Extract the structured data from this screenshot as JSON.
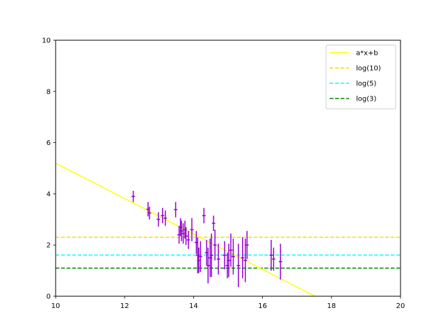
{
  "chart_data": {
    "type": "scatter",
    "xlim": [
      10,
      20
    ],
    "ylim": [
      0,
      10
    ],
    "x_ticks": [
      10,
      12,
      14,
      16,
      18,
      20
    ],
    "y_ticks": [
      0,
      2,
      4,
      6,
      8,
      10
    ],
    "grid": false,
    "legend_position": "top-right",
    "fit_line": {
      "name": "a*x+b",
      "color": "#ffff00",
      "slope": -0.692,
      "intercept": 12.12
    },
    "reference_lines": [
      {
        "name": "log(10)",
        "y": 2.303,
        "color": "#ffd700"
      },
      {
        "name": "log(5)",
        "y": 1.609,
        "color": "#00ffff"
      },
      {
        "name": "log(3)",
        "y": 1.099,
        "color": "#008000"
      }
    ],
    "points": {
      "color": "#9400d3",
      "x": [
        12.25,
        12.68,
        12.72,
        12.98,
        13.1,
        13.18,
        13.48,
        13.58,
        13.62,
        13.65,
        13.7,
        13.75,
        13.78,
        13.85,
        13.95,
        14.08,
        14.12,
        14.15,
        14.2,
        14.3,
        14.38,
        14.42,
        14.48,
        14.52,
        14.58,
        14.62,
        14.72,
        14.9,
        14.98,
        15.02,
        15.08,
        15.15,
        15.3,
        15.42,
        15.5,
        15.55,
        16.25,
        16.32,
        16.52
      ],
      "y": [
        3.9,
        3.4,
        3.25,
        3.0,
        3.15,
        3.05,
        3.38,
        2.4,
        2.7,
        2.55,
        2.45,
        2.6,
        2.35,
        2.2,
        2.6,
        2.1,
        1.6,
        1.4,
        1.55,
        3.15,
        1.7,
        1.2,
        1.5,
        1.6,
        2.85,
        2.0,
        1.45,
        1.6,
        1.2,
        1.4,
        1.8,
        1.55,
        1.2,
        1.5,
        1.4,
        2.0,
        1.6,
        1.45,
        1.35
      ],
      "yerr": [
        0.22,
        0.28,
        0.25,
        0.28,
        0.3,
        0.3,
        0.3,
        0.35,
        0.35,
        0.4,
        0.4,
        0.35,
        0.35,
        0.35,
        0.45,
        0.45,
        0.7,
        0.5,
        0.6,
        0.3,
        0.5,
        0.7,
        0.75,
        0.85,
        0.3,
        0.6,
        0.6,
        0.55,
        0.5,
        0.65,
        0.65,
        0.7,
        0.85,
        0.8,
        0.85,
        0.55,
        0.6,
        0.45,
        0.7
      ],
      "xerr": [
        0.05,
        0.05,
        0.05,
        0.05,
        0.05,
        0.05,
        0.05,
        0.05,
        0.05,
        0.05,
        0.05,
        0.05,
        0.05,
        0.05,
        0.05,
        0.05,
        0.05,
        0.05,
        0.05,
        0.05,
        0.05,
        0.05,
        0.05,
        0.05,
        0.05,
        0.05,
        0.05,
        0.05,
        0.05,
        0.05,
        0.05,
        0.05,
        0.05,
        0.05,
        0.05,
        0.05,
        0.05,
        0.05,
        0.05
      ]
    }
  }
}
